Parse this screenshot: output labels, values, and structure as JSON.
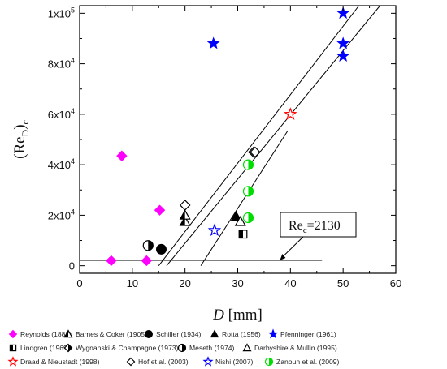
{
  "chart_data": {
    "type": "scatter",
    "title": "",
    "xlabel": "D [mm]",
    "xlabel_parts": {
      "var": "D",
      "unit": "[mm]"
    },
    "ylabel": "(ReD)c",
    "ylabel_parts": {
      "open": "(Re",
      "sub1": "D",
      "close": ")",
      "sub2": "c"
    },
    "xlim": [
      0,
      60
    ],
    "ylim": [
      -3000,
      103000
    ],
    "x_ticks": [
      0,
      10,
      20,
      30,
      40,
      50,
      60
    ],
    "x_tick_labels": [
      "0",
      "10",
      "20",
      "30",
      "40",
      "50",
      "60"
    ],
    "y_ticks": [
      0,
      20000,
      40000,
      60000,
      80000,
      100000
    ],
    "y_tick_labels": [
      {
        "m": "0",
        "e": ""
      },
      {
        "m": "2x10",
        "e": "4"
      },
      {
        "m": "4x10",
        "e": "4"
      },
      {
        "m": "6x10",
        "e": "4"
      },
      {
        "m": "8x10",
        "e": "4"
      },
      {
        "m": "1x10",
        "e": "5"
      }
    ],
    "grid": false,
    "legend_placement": "bottom",
    "series": [
      {
        "name": "Reynolds (1883)",
        "marker": "diamond",
        "color": "#ff00ff",
        "points": [
          [
            6,
            2000
          ],
          [
            8,
            43500
          ],
          [
            12.7,
            2000
          ],
          [
            15.2,
            22000
          ]
        ]
      },
      {
        "name": "Barnes & Coker (1905)",
        "marker": "triangle-half",
        "color": "#000000",
        "points": [
          [
            20,
            17500
          ],
          [
            20,
            20000
          ]
        ]
      },
      {
        "name": "Schiller (1934)",
        "marker": "circle",
        "color": "#000000",
        "points": [
          [
            15.5,
            6500
          ]
        ]
      },
      {
        "name": "Rotta (1956)",
        "marker": "triangle",
        "color": "#000000",
        "points": [
          [
            29.7,
            19500
          ]
        ]
      },
      {
        "name": "Pfenninger (1961)",
        "marker": "star",
        "color": "#0000ff",
        "points": [
          [
            25.4,
            88000
          ],
          [
            50,
            100000
          ],
          [
            50,
            88000
          ],
          [
            50,
            83000
          ]
        ]
      },
      {
        "name": "Lindgren (1969)",
        "marker": "square-half",
        "color": "#000000",
        "points": [
          [
            31,
            12500
          ]
        ]
      },
      {
        "name": "Wygnanski & Champagne (1973)",
        "marker": "diamond-half",
        "color": "#000000",
        "points": [
          [
            33,
            45000
          ]
        ]
      },
      {
        "name": "Meseth (1974)",
        "marker": "circle-half",
        "color": "#000000",
        "points": [
          [
            13,
            8000
          ]
        ]
      },
      {
        "name": "Darbyshire & Mullin (1995)",
        "marker": "triangle-open",
        "color": "#000000",
        "points": [
          [
            30.5,
            17500
          ]
        ]
      },
      {
        "name": "Draad & Nieustadt (1998)",
        "marker": "star-open",
        "color": "#ff0000",
        "points": [
          [
            40,
            60000
          ]
        ]
      },
      {
        "name": "Hof et al. (2003)",
        "marker": "diamond-open",
        "color": "#000000",
        "points": [
          [
            20,
            24000
          ],
          [
            33.3,
            45000
          ]
        ]
      },
      {
        "name": "Nishi (2007)",
        "marker": "star-open",
        "color": "#0000ff",
        "points": [
          [
            25.6,
            14000
          ]
        ]
      },
      {
        "name": "Zanoun et al. (2009)",
        "marker": "circle-half",
        "color": "#00dd00",
        "points": [
          [
            32,
            40000
          ],
          [
            32,
            29500
          ],
          [
            32,
            19000
          ]
        ]
      }
    ],
    "lines": [
      {
        "name": "fit-1",
        "from": [
          15,
          0
        ],
        "to": [
          53,
          103000
        ]
      },
      {
        "name": "fit-2",
        "from": [
          16.5,
          0
        ],
        "to": [
          57,
          103000
        ]
      },
      {
        "name": "fit-3",
        "from": [
          23,
          0
        ],
        "to": [
          39.5,
          53500
        ]
      },
      {
        "name": "critical",
        "from": [
          0,
          2130
        ],
        "to": [
          46,
          2130
        ]
      }
    ],
    "annotation": {
      "text_main": "Re",
      "text_sub": "c",
      "text_value": "=2130",
      "arrow_to": [
        38,
        2130
      ]
    }
  }
}
